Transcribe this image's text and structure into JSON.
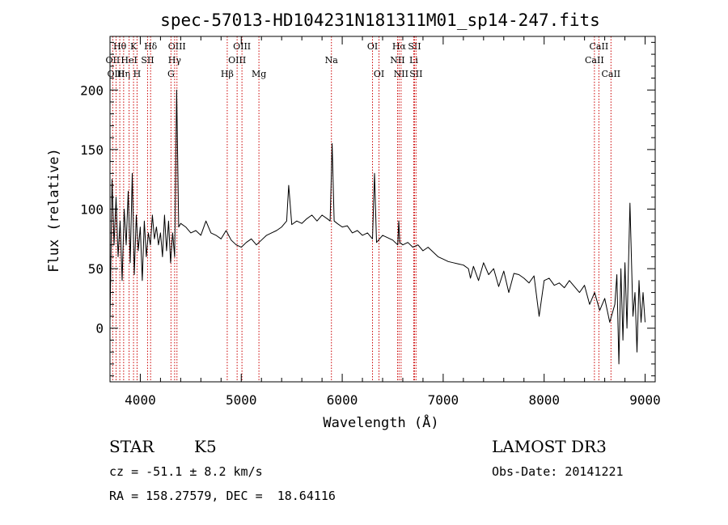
{
  "chart_data": {
    "type": "line",
    "title": "spec-57013-HD104231N181311M01_sp14-247.fits",
    "xlabel": "Wavelength (Å)",
    "ylabel": "Flux (relative)",
    "xlim": [
      3700,
      9100
    ],
    "ylim": [
      -45,
      245
    ],
    "xticks": [
      4000,
      5000,
      6000,
      7000,
      8000,
      9000
    ],
    "yticks": [
      0,
      50,
      100,
      150,
      200
    ],
    "grid": false,
    "line_color": "#000000",
    "marker_color": "#cc0000",
    "series": [
      {
        "x": [
          3700,
          3720,
          3740,
          3760,
          3780,
          3800,
          3820,
          3840,
          3860,
          3880,
          3900,
          3920,
          3940,
          3960,
          3980,
          4000,
          4020,
          4040,
          4060,
          4080,
          4100,
          4120,
          4140,
          4160,
          4180,
          4200,
          4220,
          4240,
          4260,
          4280,
          4300,
          4320,
          4340,
          4360,
          4380,
          4400,
          4450,
          4500,
          4550,
          4600,
          4650,
          4700,
          4750,
          4800,
          4850,
          4900,
          4950,
          5000,
          5050,
          5100,
          5150,
          5200,
          5250,
          5300,
          5350,
          5400,
          5450,
          5470,
          5500,
          5550,
          5600,
          5650,
          5700,
          5750,
          5800,
          5850,
          5880,
          5890,
          5900,
          5920,
          5950,
          6000,
          6050,
          6100,
          6150,
          6200,
          6250,
          6300,
          6320,
          6340,
          6400,
          6450,
          6500,
          6550,
          6560,
          6570,
          6600,
          6650,
          6700,
          6750,
          6800,
          6850,
          6900,
          6950,
          7000,
          7050,
          7100,
          7150,
          7200,
          7250,
          7270,
          7300,
          7350,
          7400,
          7450,
          7500,
          7550,
          7600,
          7650,
          7700,
          7750,
          7800,
          7850,
          7900,
          7950,
          8000,
          8050,
          8100,
          8150,
          8200,
          8250,
          8300,
          8350,
          8400,
          8450,
          8500,
          8550,
          8600,
          8650,
          8700,
          8720,
          8740,
          8760,
          8780,
          8800,
          8820,
          8850,
          8880,
          8900,
          8920,
          8940,
          8960,
          8980,
          9000
        ],
        "y": [
          5,
          125,
          70,
          110,
          60,
          90,
          40,
          100,
          70,
          115,
          55,
          130,
          45,
          95,
          65,
          85,
          40,
          90,
          60,
          80,
          70,
          95,
          75,
          85,
          70,
          80,
          60,
          95,
          65,
          90,
          55,
          80,
          60,
          200,
          85,
          88,
          85,
          80,
          82,
          78,
          90,
          80,
          78,
          75,
          82,
          74,
          70,
          68,
          72,
          75,
          70,
          74,
          78,
          80,
          82,
          85,
          90,
          120,
          87,
          90,
          88,
          92,
          95,
          90,
          95,
          92,
          90,
          120,
          155,
          90,
          88,
          85,
          86,
          80,
          82,
          78,
          80,
          75,
          130,
          72,
          78,
          76,
          74,
          70,
          90,
          72,
          70,
          72,
          68,
          70,
          65,
          68,
          64,
          60,
          58,
          56,
          55,
          54,
          53,
          50,
          42,
          52,
          40,
          55,
          45,
          50,
          35,
          48,
          30,
          46,
          45,
          42,
          38,
          44,
          10,
          40,
          42,
          36,
          38,
          34,
          40,
          35,
          30,
          36,
          20,
          30,
          15,
          25,
          5,
          20,
          45,
          -30,
          50,
          -10,
          55,
          0,
          105,
          10,
          30,
          -20,
          40,
          5,
          30,
          5
        ]
      }
    ],
    "line_markers": [
      {
        "label": "Hθ",
        "x": 3797,
        "row": 1
      },
      {
        "label": "OII",
        "x": 3727,
        "row": 2
      },
      {
        "label": "OIII",
        "x": 3760,
        "row": 3
      },
      {
        "label": "Hη",
        "x": 3835,
        "row": 3
      },
      {
        "label": "HeI",
        "x": 3889,
        "row": 2
      },
      {
        "label": "K",
        "x": 3933,
        "row": 1
      },
      {
        "label": "H",
        "x": 3968,
        "row": 3
      },
      {
        "label": "SII",
        "x": 4072,
        "row": 2
      },
      {
        "label": "Hδ",
        "x": 4102,
        "row": 1
      },
      {
        "label": "OIII",
        "x": 4363,
        "row": 1
      },
      {
        "label": "Hγ",
        "x": 4340,
        "row": 2
      },
      {
        "label": "G",
        "x": 4304,
        "row": 3
      },
      {
        "label": "Hβ",
        "x": 4861,
        "row": 3
      },
      {
        "label": "OIII",
        "x": 5007,
        "row": 1
      },
      {
        "label": "OIII",
        "x": 4959,
        "row": 2
      },
      {
        "label": "Mg",
        "x": 5175,
        "row": 3
      },
      {
        "label": "Na",
        "x": 5893,
        "row": 2
      },
      {
        "label": "OI",
        "x": 6300,
        "row": 1
      },
      {
        "label": "OI",
        "x": 6364,
        "row": 3
      },
      {
        "label": "Hα",
        "x": 6563,
        "row": 1
      },
      {
        "label": "NII",
        "x": 6548,
        "row": 2
      },
      {
        "label": "NII",
        "x": 6583,
        "row": 3
      },
      {
        "label": "Li",
        "x": 6708,
        "row": 2
      },
      {
        "label": "SII",
        "x": 6716,
        "row": 1
      },
      {
        "label": "SII",
        "x": 6731,
        "row": 3
      },
      {
        "label": "CaII",
        "x": 8542,
        "row": 1
      },
      {
        "label": "CaII",
        "x": 8498,
        "row": 2
      },
      {
        "label": "CaII",
        "x": 8662,
        "row": 3
      }
    ]
  },
  "info": {
    "object_class": "STAR",
    "subclass": "K5",
    "survey": "LAMOST DR3",
    "velocity": "cz = -51.1 ± 8.2 km/s",
    "obs_date": "Obs-Date: 20141221",
    "coords": "RA = 158.27579, DEC =  18.64116"
  }
}
